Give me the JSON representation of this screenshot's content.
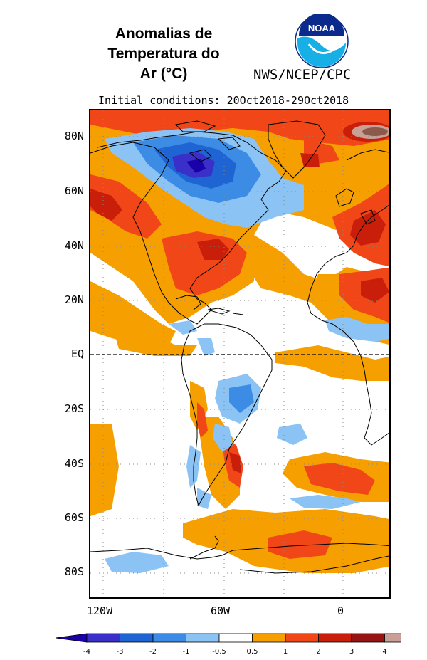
{
  "title": {
    "line1": "Anomalias de",
    "line2": "Temperatura do",
    "line3": "Ar (°C)"
  },
  "logo": {
    "icon": "noaa-logo",
    "text": "NOAA"
  },
  "agency": "NWS/NCEP/CPC",
  "subtitle": "Initial conditions: 20Oct2018-29Oct2018",
  "map": {
    "lat_labels": [
      "80N",
      "60N",
      "40N",
      "20N",
      "EQ",
      "20S",
      "40S",
      "60S",
      "80S"
    ],
    "lon_labels": [
      "120W",
      "60W",
      "0"
    ],
    "equator_line": "dashed"
  },
  "colorbar": {
    "tick_labels": [
      "-4",
      "-3",
      "-2",
      "-1",
      "-0.5",
      "0.5",
      "1",
      "2",
      "3",
      "4"
    ],
    "colors": {
      "below_minus4": "#1a00a8",
      "minus4_minus3": "#3a2fc8",
      "minus3_minus2": "#1e64d2",
      "minus2_minus1": "#3c8ce6",
      "minus1_minus05": "#8cc3f5",
      "minus05_05": "#ffffff",
      "p05_p1": "#f5a000",
      "p1_p2": "#f04618",
      "p2_p3": "#c81e0a",
      "p3_p4": "#961414",
      "above_p4": "#c8a096",
      "extreme": "#8c5a4b"
    }
  }
}
